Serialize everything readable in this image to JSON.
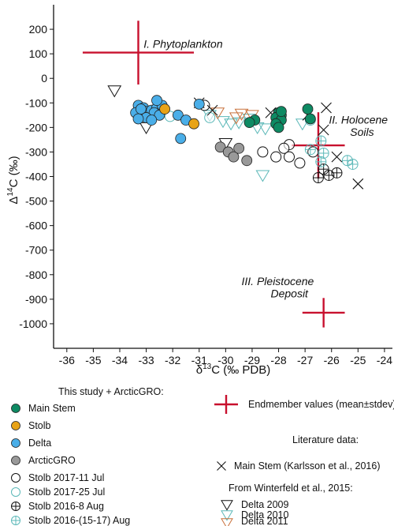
{
  "chart_data": {
    "type": "scatter",
    "title": "",
    "xlabel_delta": "δ",
    "xlabel_sup": "13",
    "xlabel_rest": "C (‰ PDB)",
    "ylabel_delta": "Δ",
    "ylabel_sup": "14",
    "ylabel_rest": "C (‰)",
    "xlim": [
      -36.5,
      -23.7
    ],
    "ylim": [
      -1100,
      300
    ],
    "x_ticks": [
      -36,
      -35,
      -34,
      -33,
      -32,
      -31,
      -30,
      -29,
      -28,
      -27,
      -26,
      -25,
      -24
    ],
    "y_ticks": [
      200,
      100,
      0,
      -100,
      -200,
      -300,
      -400,
      -500,
      -600,
      -700,
      -800,
      -900,
      -1000
    ],
    "annotations": [
      {
        "key": "phyto",
        "text": "I. Phytoplankton",
        "x": -33.1,
        "y": 125
      },
      {
        "key": "soil1",
        "text": "II. Holocene",
        "x": -26.1,
        "y": -185
      },
      {
        "key": "soil2",
        "text": "Soils",
        "x": -25.3,
        "y": -235
      },
      {
        "key": "pleist1",
        "text": "III. Pleistocene",
        "x": -29.4,
        "y": -843
      },
      {
        "key": "pleist2",
        "text": "Deposit",
        "x": -28.3,
        "y": -893
      }
    ],
    "endmembers": [
      {
        "name": "I. Phytoplankton",
        "x": -33.3,
        "y": 105,
        "xsd": 2.1,
        "ysd": 130
      },
      {
        "name": "II. Holocene Soils",
        "x": -26.5,
        "y": -273,
        "xsd": 1.0,
        "ysd": 135
      },
      {
        "name": "III. Pleistocene Deposit",
        "x": -26.3,
        "y": -955,
        "xsd": 0.8,
        "ysd": 60
      }
    ],
    "series": [
      {
        "key": "main_stem",
        "name": "Main Stem",
        "marker": "circle-filled",
        "color": "#0e8a63",
        "points": [
          [
            -28.0,
            -140
          ],
          [
            -27.9,
            -150
          ],
          [
            -28.1,
            -160
          ],
          [
            -27.9,
            -170
          ],
          [
            -28.1,
            -185
          ],
          [
            -28.0,
            -200
          ],
          [
            -28.9,
            -170
          ],
          [
            -29.1,
            -180
          ],
          [
            -26.9,
            -125
          ],
          [
            -26.8,
            -165
          ],
          [
            -27.9,
            -135
          ]
        ]
      },
      {
        "key": "stolb",
        "name": "Stolb",
        "marker": "circle-filled",
        "color": "#e8a317",
        "points": [
          [
            -32.3,
            -125
          ],
          [
            -31.2,
            -185
          ]
        ]
      },
      {
        "key": "delta",
        "name": "Delta",
        "marker": "circle-filled",
        "color": "#4aaee8",
        "points": [
          [
            -33.3,
            -110
          ],
          [
            -33.1,
            -120
          ],
          [
            -33.0,
            -135
          ],
          [
            -32.9,
            -145
          ],
          [
            -33.2,
            -150
          ],
          [
            -33.4,
            -140
          ],
          [
            -33.2,
            -125
          ],
          [
            -32.8,
            -130
          ],
          [
            -32.6,
            -120
          ],
          [
            -32.7,
            -140
          ],
          [
            -32.5,
            -150
          ],
          [
            -33.0,
            -160
          ],
          [
            -33.3,
            -165
          ],
          [
            -32.8,
            -170
          ],
          [
            -32.4,
            -110
          ],
          [
            -32.6,
            -90
          ],
          [
            -31.8,
            -150
          ],
          [
            -31.5,
            -170
          ],
          [
            -31.0,
            -105
          ],
          [
            -31.7,
            -245
          ]
        ]
      },
      {
        "key": "arcticgro",
        "name": "ArcticGRO",
        "marker": "circle-filled",
        "color": "#999999",
        "points": [
          [
            -30.2,
            -280
          ],
          [
            -29.9,
            -300
          ],
          [
            -29.7,
            -320
          ],
          [
            -29.2,
            -335
          ],
          [
            -29.5,
            -285
          ]
        ]
      },
      {
        "key": "stolb_jul11",
        "name": "Stolb 2017-11 Jul",
        "marker": "circle-open",
        "color": "#111111",
        "points": [
          [
            -30.8,
            -110
          ],
          [
            -27.6,
            -270
          ],
          [
            -27.8,
            -285
          ],
          [
            -28.1,
            -320
          ],
          [
            -27.6,
            -320
          ],
          [
            -27.2,
            -345
          ],
          [
            -28.6,
            -300
          ],
          [
            -26.7,
            -300
          ]
        ]
      },
      {
        "key": "stolb_jul25",
        "name": "Stolb 2017-25 Jul",
        "marker": "circle-open",
        "color": "#5bb8b8",
        "points": [
          [
            -32.1,
            -155
          ],
          [
            -30.6,
            -160
          ],
          [
            -26.8,
            -170
          ]
        ]
      },
      {
        "key": "stolb_aug8",
        "name": "Stolb 2016-8 Aug",
        "marker": "circle-plus",
        "color": "#111111",
        "points": [
          [
            -26.3,
            -370
          ],
          [
            -26.1,
            -395
          ],
          [
            -25.8,
            -385
          ],
          [
            -26.5,
            -405
          ]
        ]
      },
      {
        "key": "stolb_aug15",
        "name": "Stolb 2016-(15-17) Aug",
        "marker": "circle-plus",
        "color": "#5bb8b8",
        "points": [
          [
            -26.4,
            -255
          ],
          [
            -26.8,
            -290
          ],
          [
            -26.3,
            -305
          ],
          [
            -25.4,
            -335
          ],
          [
            -25.2,
            -350
          ],
          [
            -26.4,
            -340
          ]
        ]
      },
      {
        "key": "karlsson",
        "name": "Main Stem (Karlsson et al., 2016)",
        "marker": "x",
        "color": "#111111",
        "points": [
          [
            -31.0,
            -100
          ],
          [
            -30.5,
            -130
          ],
          [
            -28.3,
            -140
          ],
          [
            -26.2,
            -120
          ],
          [
            -26.3,
            -210
          ],
          [
            -25.8,
            -320
          ],
          [
            -25.0,
            -430
          ],
          [
            -26.9,
            -150
          ]
        ]
      },
      {
        "key": "delta2009",
        "name": "Delta 2009",
        "marker": "triangle-down",
        "color": "#111111",
        "points": [
          [
            -34.2,
            -50
          ],
          [
            -33.0,
            -200
          ],
          [
            -30.0,
            -265
          ]
        ]
      },
      {
        "key": "delta2010",
        "name": "Delta 2010",
        "marker": "triangle-down",
        "color": "#5bb8b8",
        "points": [
          [
            -30.6,
            -150
          ],
          [
            -30.1,
            -175
          ],
          [
            -29.8,
            -185
          ],
          [
            -29.5,
            -180
          ],
          [
            -29.1,
            -165
          ],
          [
            -28.8,
            -200
          ],
          [
            -28.5,
            -205
          ],
          [
            -28.6,
            -395
          ],
          [
            -27.1,
            -185
          ]
        ]
      },
      {
        "key": "delta2011",
        "name": "Delta 2011",
        "marker": "triangle-down",
        "color": "#c8703a",
        "points": [
          [
            -30.3,
            -140
          ],
          [
            -29.6,
            -160
          ],
          [
            -29.4,
            -145
          ],
          [
            -29.0,
            -150
          ]
        ]
      }
    ]
  },
  "legend": {
    "header_study": "This study + ArcticGRO:",
    "endmember": "Endmember values (mean±stdev)",
    "literature": "Literature data:",
    "winterfeld": "From Winterfeld et al., 2015:"
  }
}
